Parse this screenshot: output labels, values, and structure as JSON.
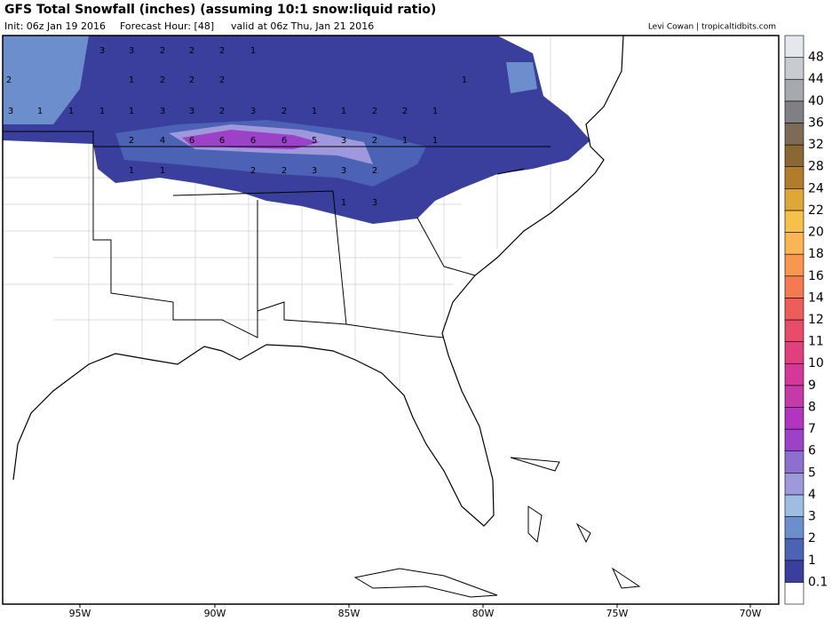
{
  "header": {
    "title": "GFS Total Snowfall (inches) (assuming 10:1 snow:liquid ratio)",
    "init": "Init: 06z Jan 19 2016",
    "forecast_hour": "Forecast Hour: [48]",
    "valid": "valid at 06z Thu, Jan 21 2016",
    "credit": "Levi Cowan | tropicaltidbits.com"
  },
  "map": {
    "longitude_labels": [
      "95W",
      "90W",
      "85W",
      "80W",
      "75W",
      "70W"
    ],
    "labels": [
      3,
      3,
      2,
      2,
      2,
      1,
      2,
      1,
      2,
      2,
      2,
      1,
      3,
      1,
      1,
      1,
      1,
      3,
      3,
      2,
      3,
      2,
      1,
      1,
      2,
      2,
      1,
      2,
      4,
      6,
      6,
      6,
      6,
      5,
      3,
      2,
      1,
      1,
      1,
      1,
      2,
      2,
      3,
      3,
      2,
      1,
      3
    ]
  },
  "colorbar": {
    "levels": [
      0.1,
      1,
      2,
      3,
      4,
      5,
      6,
      7,
      8,
      9,
      10,
      11,
      12,
      14,
      16,
      18,
      20,
      22,
      24,
      28,
      32,
      36,
      40,
      44,
      48
    ],
    "colors": [
      "#ffffff",
      "#3a3f9e",
      "#4b62b5",
      "#6d8ecd",
      "#9dbde3",
      "#9f98dc",
      "#8d6fd0",
      "#9c42c8",
      "#b234c0",
      "#c63aa8",
      "#d6389a",
      "#e0407e",
      "#e84c6a",
      "#ef5d5a",
      "#f47a52",
      "#f8974f",
      "#fbb552",
      "#f6c04a",
      "#dfa638",
      "#b27c2b",
      "#8a6733",
      "#7d6b58",
      "#7f7f84",
      "#a6aab0",
      "#c8ccd2",
      "#e4e8ee"
    ]
  }
}
